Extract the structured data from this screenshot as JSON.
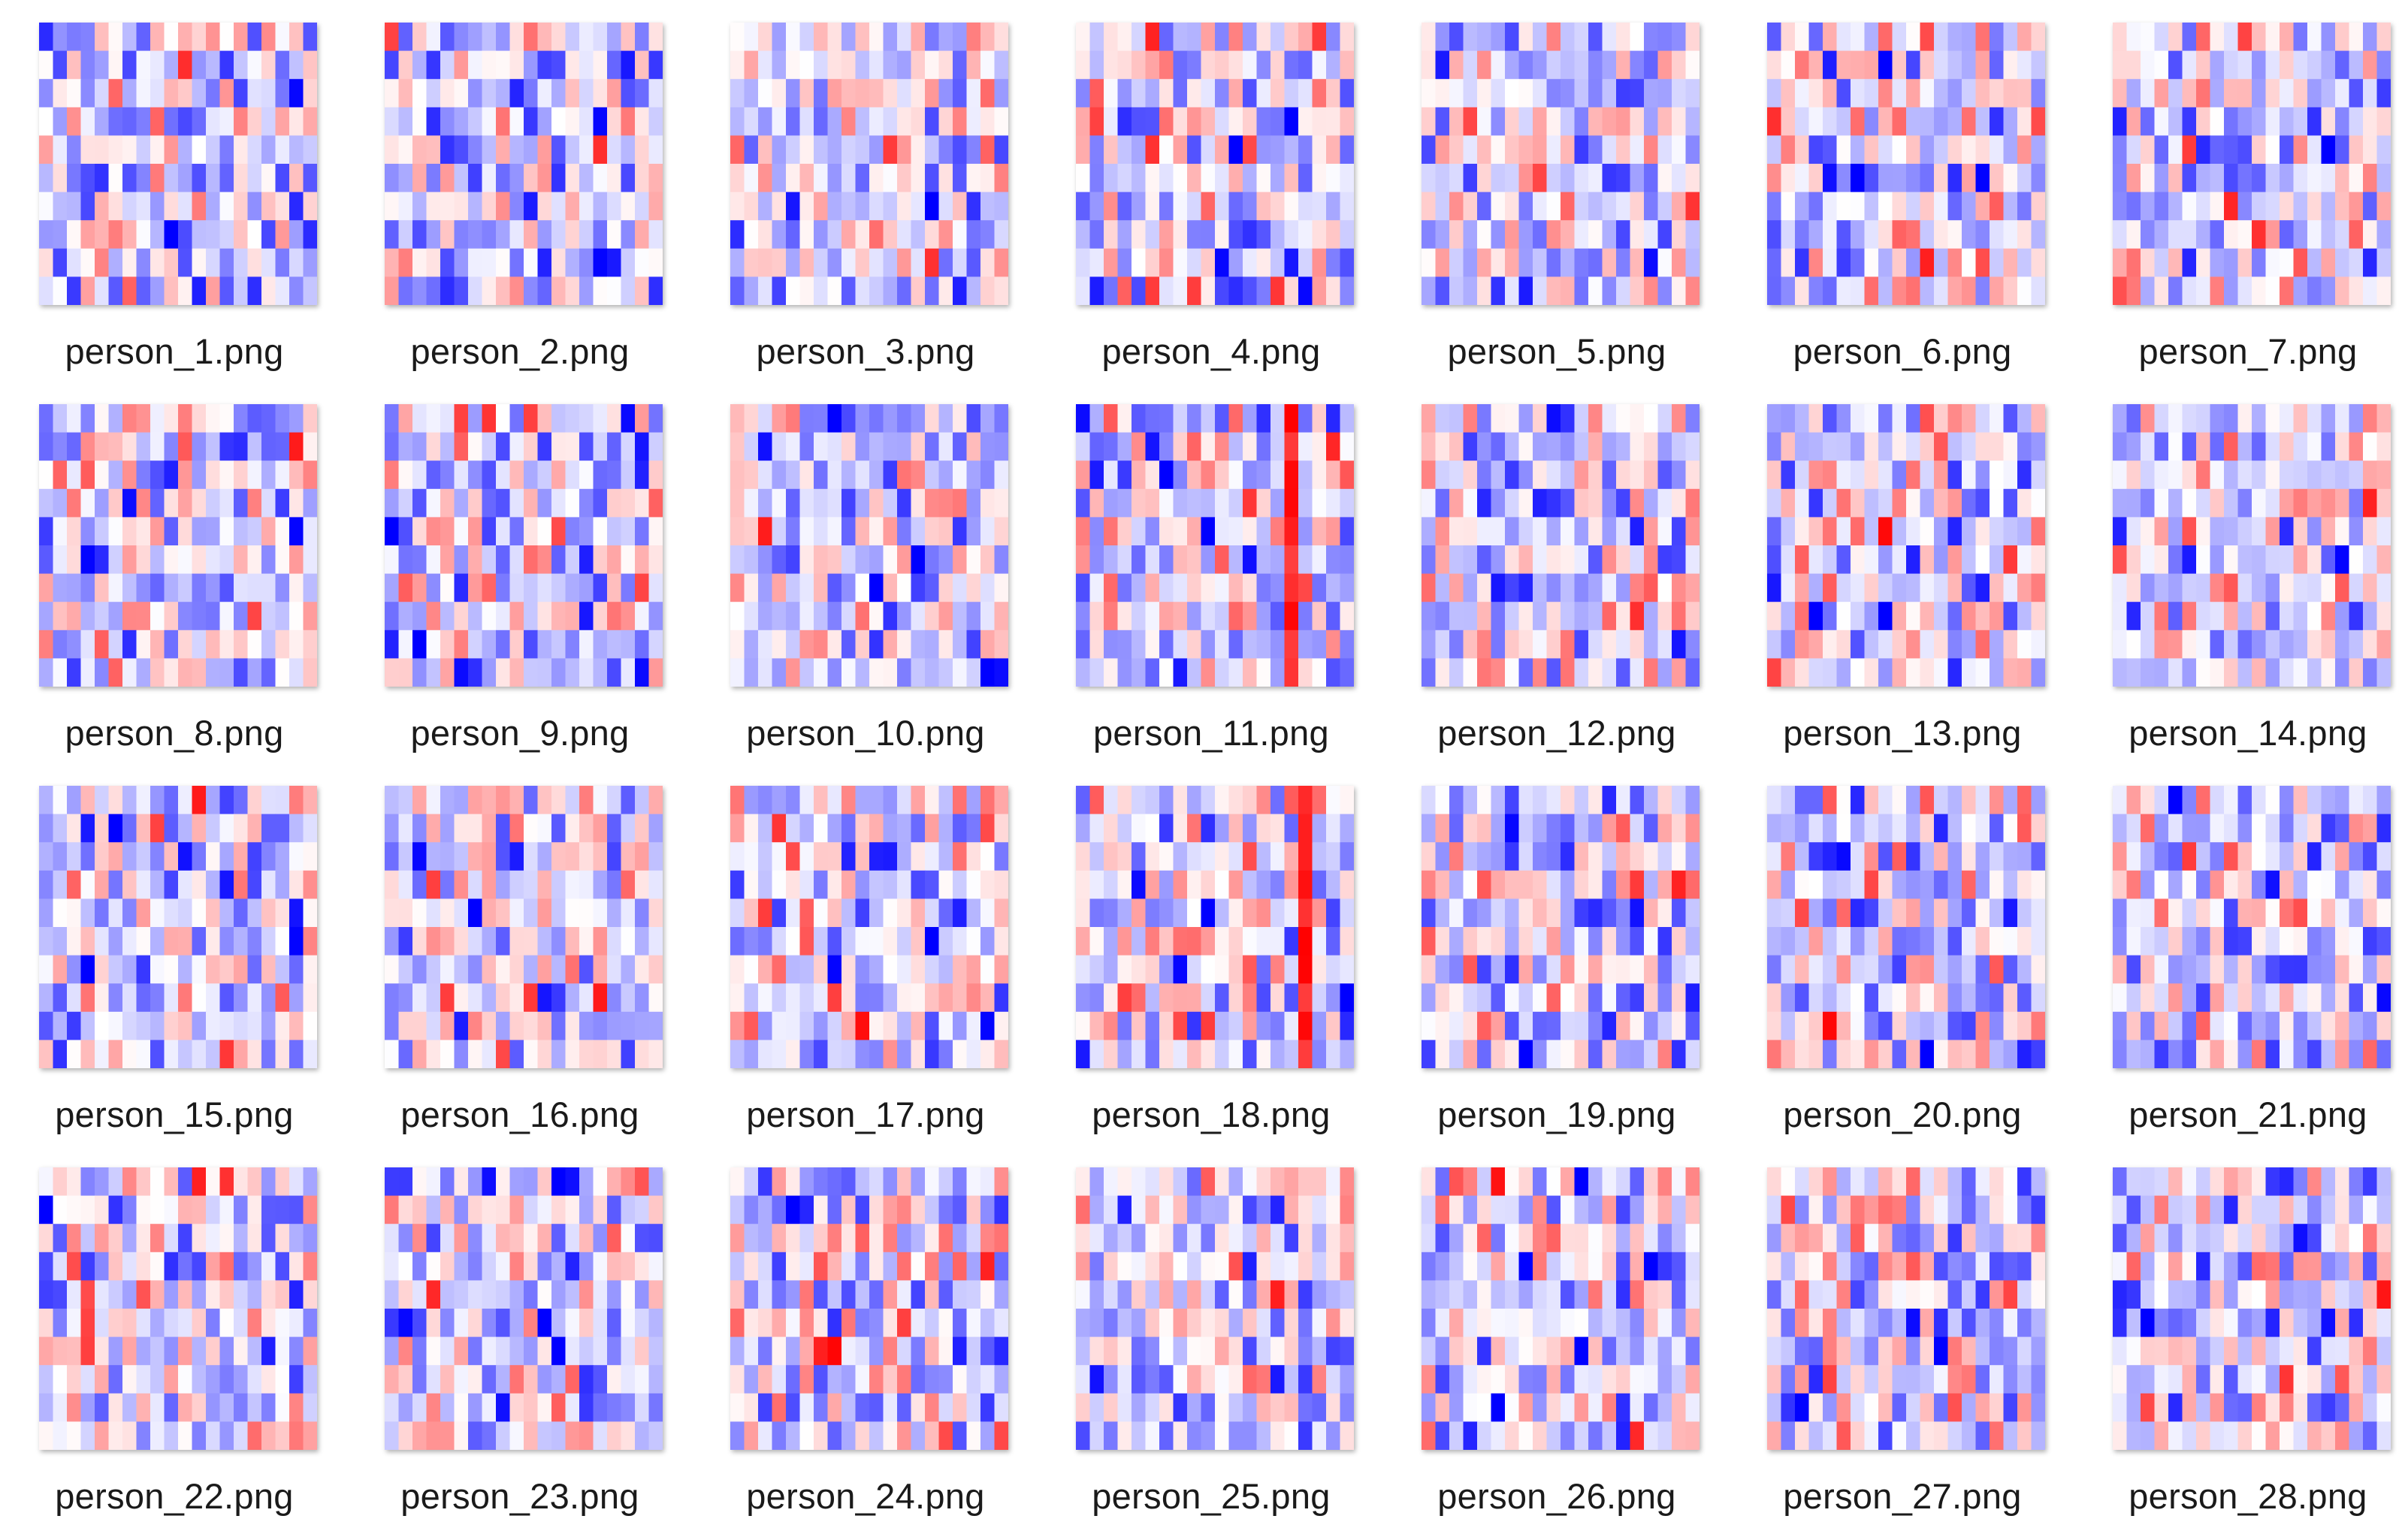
{
  "folder": {
    "view": "large-icons",
    "items": [
      {
        "filename": "person_1.png",
        "icon": "image-thumbnail-icon"
      },
      {
        "filename": "person_2.png",
        "icon": "image-thumbnail-icon"
      },
      {
        "filename": "person_3.png",
        "icon": "image-thumbnail-icon"
      },
      {
        "filename": "person_4.png",
        "icon": "image-thumbnail-icon"
      },
      {
        "filename": "person_5.png",
        "icon": "image-thumbnail-icon"
      },
      {
        "filename": "person_6.png",
        "icon": "image-thumbnail-icon"
      },
      {
        "filename": "person_7.png",
        "icon": "image-thumbnail-icon"
      },
      {
        "filename": "person_8.png",
        "icon": "image-thumbnail-icon"
      },
      {
        "filename": "person_9.png",
        "icon": "image-thumbnail-icon"
      },
      {
        "filename": "person_10.png",
        "icon": "image-thumbnail-icon"
      },
      {
        "filename": "person_11.png",
        "icon": "image-thumbnail-icon"
      },
      {
        "filename": "person_12.png",
        "icon": "image-thumbnail-icon"
      },
      {
        "filename": "person_13.png",
        "icon": "image-thumbnail-icon"
      },
      {
        "filename": "person_14.png",
        "icon": "image-thumbnail-icon"
      },
      {
        "filename": "person_15.png",
        "icon": "image-thumbnail-icon"
      },
      {
        "filename": "person_16.png",
        "icon": "image-thumbnail-icon"
      },
      {
        "filename": "person_17.png",
        "icon": "image-thumbnail-icon"
      },
      {
        "filename": "person_18.png",
        "icon": "image-thumbnail-icon"
      },
      {
        "filename": "person_19.png",
        "icon": "image-thumbnail-icon"
      },
      {
        "filename": "person_20.png",
        "icon": "image-thumbnail-icon"
      },
      {
        "filename": "person_21.png",
        "icon": "image-thumbnail-icon"
      },
      {
        "filename": "person_22.png",
        "icon": "image-thumbnail-icon"
      },
      {
        "filename": "person_23.png",
        "icon": "image-thumbnail-icon"
      },
      {
        "filename": "person_24.png",
        "icon": "image-thumbnail-icon"
      },
      {
        "filename": "person_25.png",
        "icon": "image-thumbnail-icon"
      },
      {
        "filename": "person_26.png",
        "icon": "image-thumbnail-icon"
      },
      {
        "filename": "person_27.png",
        "icon": "image-thumbnail-icon"
      },
      {
        "filename": "person_28.png",
        "icon": "image-thumbnail-icon"
      }
    ]
  },
  "colors": {
    "background": "#ffffff",
    "heat_cold": "#0000ff",
    "heat_neutral": "#ffffff",
    "heat_hot": "#ff0000",
    "caption_text": "#1a1a1a"
  }
}
